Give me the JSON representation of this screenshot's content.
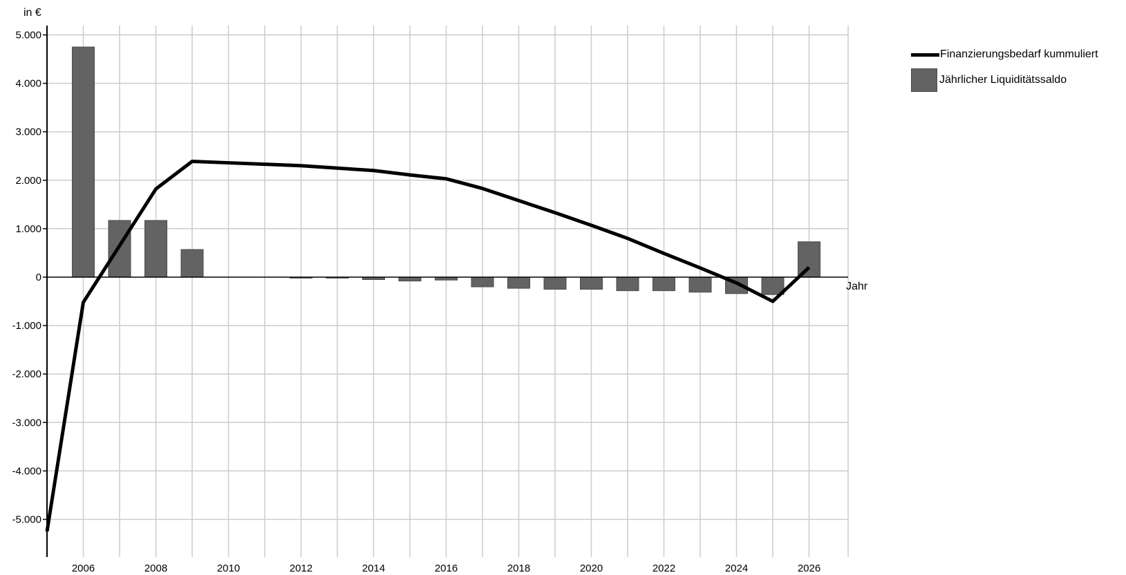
{
  "chart_data": {
    "type": "bar+line",
    "ylabel": "in €",
    "xlabel": "Jahr",
    "ylim": [
      -5500,
      5500
    ],
    "xlim": [
      2005,
      2027
    ],
    "grid": true,
    "legend_position": "top-right",
    "y_ticks": [
      5000,
      4000,
      3000,
      2000,
      1000,
      0,
      -1000,
      -2000,
      -3000,
      -4000,
      -5000
    ],
    "y_tick_labels": [
      "5.000",
      "4.000",
      "3.000",
      "2.000",
      "1.000",
      "0",
      "-1.000",
      "-2.000",
      "-3.000",
      "-4.000",
      "-5.000"
    ],
    "x_tick_labels": [
      "2006",
      "2008",
      "2010",
      "2012",
      "2014",
      "2016",
      "2018",
      "2020",
      "2022",
      "2024",
      "2026"
    ],
    "series": [
      {
        "name": "Jährlicher Liquiditätssaldo",
        "kind": "bar",
        "color": "#636363",
        "x": [
          2006,
          2007,
          2008,
          2009,
          2010,
          2011,
          2012,
          2013,
          2014,
          2015,
          2016,
          2017,
          2018,
          2019,
          2020,
          2021,
          2022,
          2023,
          2024,
          2025,
          2026
        ],
        "values": [
          4750,
          1170,
          1170,
          570,
          0,
          0,
          -20,
          -20,
          -50,
          -80,
          -60,
          -200,
          -230,
          -250,
          -250,
          -280,
          -280,
          -310,
          -340,
          -360,
          730
        ]
      },
      {
        "name": "Finanzierungsbedarf kummuliert",
        "kind": "line",
        "color": "#000000",
        "x": [
          2005,
          2006,
          2007,
          2008,
          2009,
          2010,
          2011,
          2012,
          2013,
          2014,
          2015,
          2016,
          2017,
          2018,
          2019,
          2020,
          2021,
          2022,
          2023,
          2024,
          2025,
          2026
        ],
        "values": [
          -5250,
          -520,
          650,
          1820,
          2390,
          2360,
          2330,
          2300,
          2250,
          2200,
          2110,
          2030,
          1830,
          1580,
          1330,
          1070,
          800,
          490,
          190,
          -120,
          -500,
          200
        ]
      }
    ]
  }
}
